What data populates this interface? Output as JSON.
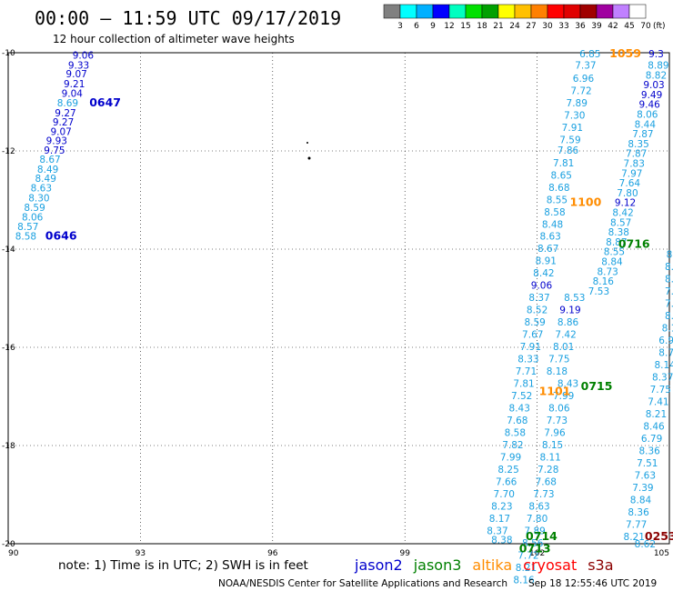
{
  "header": {
    "title": "00:00 – 11:59 UTC 09/17/2019",
    "subtitle": "12 hour collection of altimeter wave heights"
  },
  "colorbar": {
    "labels": [
      "3",
      "6",
      "9",
      "12",
      "15",
      "18",
      "21",
      "24",
      "27",
      "30",
      "33",
      "36",
      "39",
      "42",
      "45",
      "70"
    ],
    "unit": "(ft)",
    "colors": [
      "#808080",
      "#00ffff",
      "#00b0ff",
      "#0000ff",
      "#00ffc0",
      "#00e000",
      "#00a000",
      "#ffff00",
      "#ffc000",
      "#ff8000",
      "#ff0000",
      "#e00000",
      "#a00000",
      "#a000a0",
      "#c080ff",
      "#ffffff"
    ]
  },
  "footer": {
    "note": "note:  1) Time is in UTC; 2) SWH is in feet",
    "credit": "NOAA/NESDIS Center for Satellite Applications and Research",
    "timestamp": "Sep 18 12:55:46 UTC 2019",
    "satellites": [
      {
        "name": "jason2",
        "color": "#0000cc"
      },
      {
        "name": "jason3",
        "color": "#008000"
      },
      {
        "name": "altika",
        "color": "#ff8c00"
      },
      {
        "name": "cryosat",
        "color": "#ff0000"
      },
      {
        "name": "s3a",
        "color": "#8b0000"
      }
    ]
  },
  "chart_data": {
    "type": "scatter",
    "x_ticks": [
      "90",
      "93",
      "96",
      "99",
      "102",
      "105"
    ],
    "y_ticks": [
      "-10",
      "-12",
      "-14",
      "-16",
      "-18",
      "-20"
    ],
    "xlim": [
      90,
      105
    ],
    "ylim": [
      -20,
      -10
    ],
    "grid": true,
    "colors": {
      "light": "#1aa0e0",
      "dark": "#0000cc",
      "green": "#008000",
      "orange": "#ff8c00",
      "darkred": "#8b0000"
    },
    "labels": [
      {
        "x": 91.7,
        "y": -10.05,
        "text": "9.06",
        "c": "dark"
      },
      {
        "x": 91.6,
        "y": -10.25,
        "text": "9.33",
        "c": "dark"
      },
      {
        "x": 91.55,
        "y": -10.43,
        "text": "9.07",
        "c": "dark"
      },
      {
        "x": 91.5,
        "y": -10.63,
        "text": "9.21",
        "c": "dark"
      },
      {
        "x": 91.45,
        "y": -10.82,
        "text": "9.04",
        "c": "dark"
      },
      {
        "x": 91.35,
        "y": -11.02,
        "text": "8.69",
        "c": "light"
      },
      {
        "x": 91.3,
        "y": -11.22,
        "text": "9.27",
        "c": "dark"
      },
      {
        "x": 91.25,
        "y": -11.41,
        "text": "9.27",
        "c": "dark"
      },
      {
        "x": 91.2,
        "y": -11.6,
        "text": "9.07",
        "c": "dark"
      },
      {
        "x": 91.1,
        "y": -11.79,
        "text": "9.93",
        "c": "dark"
      },
      {
        "x": 91.05,
        "y": -11.98,
        "text": "9.75",
        "c": "dark"
      },
      {
        "x": 90.95,
        "y": -12.17,
        "text": "8.67",
        "c": "light"
      },
      {
        "x": 90.9,
        "y": -12.37,
        "text": "8.49",
        "c": "light"
      },
      {
        "x": 90.85,
        "y": -12.56,
        "text": "8.49",
        "c": "light"
      },
      {
        "x": 90.75,
        "y": -12.75,
        "text": "8.63",
        "c": "light"
      },
      {
        "x": 90.7,
        "y": -12.95,
        "text": "8.30",
        "c": "light"
      },
      {
        "x": 90.6,
        "y": -13.15,
        "text": "8.59",
        "c": "light"
      },
      {
        "x": 90.55,
        "y": -13.34,
        "text": "8.06",
        "c": "light"
      },
      {
        "x": 90.45,
        "y": -13.54,
        "text": "8.57",
        "c": "light"
      },
      {
        "x": 90.4,
        "y": -13.73,
        "text": "8.58",
        "c": "light"
      },
      {
        "x": 92.2,
        "y": -11.02,
        "text": "0647",
        "c": "dark",
        "big": true
      },
      {
        "x": 91.2,
        "y": -13.73,
        "text": "0646",
        "c": "dark",
        "big": true
      },
      {
        "x": 103.2,
        "y": -10.02,
        "text": "6.85",
        "c": "light"
      },
      {
        "x": 103.1,
        "y": -10.25,
        "text": "7.37",
        "c": "light"
      },
      {
        "x": 103.05,
        "y": -10.52,
        "text": "6.96",
        "c": "light"
      },
      {
        "x": 103.0,
        "y": -10.77,
        "text": "7.72",
        "c": "light"
      },
      {
        "x": 102.9,
        "y": -11.02,
        "text": "7.89",
        "c": "light"
      },
      {
        "x": 102.85,
        "y": -11.27,
        "text": "7.30",
        "c": "light"
      },
      {
        "x": 102.8,
        "y": -11.52,
        "text": "7.91",
        "c": "light"
      },
      {
        "x": 102.75,
        "y": -11.77,
        "text": "7.59",
        "c": "light"
      },
      {
        "x": 102.7,
        "y": -11.98,
        "text": "7.86",
        "c": "light"
      },
      {
        "x": 102.6,
        "y": -12.24,
        "text": "7.81",
        "c": "light"
      },
      {
        "x": 102.55,
        "y": -12.49,
        "text": "8.65",
        "c": "light"
      },
      {
        "x": 102.5,
        "y": -12.74,
        "text": "8.68",
        "c": "light"
      },
      {
        "x": 102.45,
        "y": -12.99,
        "text": "8.55",
        "c": "light"
      },
      {
        "x": 102.4,
        "y": -13.24,
        "text": "8.58",
        "c": "light"
      },
      {
        "x": 102.35,
        "y": -13.49,
        "text": "8.48",
        "c": "light"
      },
      {
        "x": 102.3,
        "y": -13.73,
        "text": "8.63",
        "c": "light"
      },
      {
        "x": 102.25,
        "y": -13.98,
        "text": "8.67",
        "c": "light"
      },
      {
        "x": 102.2,
        "y": -14.23,
        "text": "8.91",
        "c": "light"
      },
      {
        "x": 102.15,
        "y": -14.48,
        "text": "8.42",
        "c": "light"
      },
      {
        "x": 102.1,
        "y": -14.73,
        "text": "9.06",
        "c": "dark"
      },
      {
        "x": 102.05,
        "y": -14.98,
        "text": "8.37",
        "c": "light"
      },
      {
        "x": 102.0,
        "y": -15.23,
        "text": "8.52",
        "c": "light"
      },
      {
        "x": 101.95,
        "y": -15.48,
        "text": "8.59",
        "c": "light"
      },
      {
        "x": 101.9,
        "y": -15.73,
        "text": "7.67",
        "c": "light"
      },
      {
        "x": 101.85,
        "y": -15.98,
        "text": "7.91",
        "c": "light"
      },
      {
        "x": 101.8,
        "y": -16.23,
        "text": "8.33",
        "c": "light"
      },
      {
        "x": 101.75,
        "y": -16.48,
        "text": "7.71",
        "c": "light"
      },
      {
        "x": 101.7,
        "y": -16.73,
        "text": "7.81",
        "c": "light"
      },
      {
        "x": 101.65,
        "y": -16.98,
        "text": "7.52",
        "c": "light"
      },
      {
        "x": 101.6,
        "y": -17.23,
        "text": "8.43",
        "c": "light"
      },
      {
        "x": 101.55,
        "y": -17.48,
        "text": "7.68",
        "c": "light"
      },
      {
        "x": 101.5,
        "y": -17.73,
        "text": "8.58",
        "c": "light"
      },
      {
        "x": 101.45,
        "y": -17.98,
        "text": "7.82",
        "c": "light"
      },
      {
        "x": 101.4,
        "y": -18.23,
        "text": "7.99",
        "c": "light"
      },
      {
        "x": 101.35,
        "y": -18.48,
        "text": "8.25",
        "c": "light"
      },
      {
        "x": 101.3,
        "y": -18.73,
        "text": "7.66",
        "c": "light"
      },
      {
        "x": 101.25,
        "y": -18.98,
        "text": "7.70",
        "c": "light"
      },
      {
        "x": 101.2,
        "y": -19.23,
        "text": "8.23",
        "c": "light"
      },
      {
        "x": 101.15,
        "y": -19.48,
        "text": "8.17",
        "c": "light"
      },
      {
        "x": 101.1,
        "y": -19.73,
        "text": "8.37",
        "c": "light"
      },
      {
        "x": 101.2,
        "y": -19.92,
        "text": "8.38",
        "c": "light"
      },
      {
        "x": 102.85,
        "y": -14.98,
        "text": "8.53",
        "c": "light"
      },
      {
        "x": 102.75,
        "y": -15.23,
        "text": "9.19",
        "c": "dark"
      },
      {
        "x": 102.7,
        "y": -15.48,
        "text": "8.86",
        "c": "light"
      },
      {
        "x": 102.65,
        "y": -15.73,
        "text": "7.42",
        "c": "light"
      },
      {
        "x": 102.6,
        "y": -15.98,
        "text": "8.01",
        "c": "light"
      },
      {
        "x": 102.5,
        "y": -16.23,
        "text": "7.75",
        "c": "light"
      },
      {
        "x": 102.45,
        "y": -16.48,
        "text": "8.18",
        "c": "light"
      },
      {
        "x": 102.7,
        "y": -16.73,
        "text": "8.43",
        "c": "light"
      },
      {
        "x": 102.6,
        "y": -16.98,
        "text": "7.99",
        "c": "light"
      },
      {
        "x": 102.5,
        "y": -17.23,
        "text": "8.06",
        "c": "light"
      },
      {
        "x": 102.45,
        "y": -17.48,
        "text": "7.73",
        "c": "light"
      },
      {
        "x": 102.4,
        "y": -17.73,
        "text": "7.96",
        "c": "light"
      },
      {
        "x": 102.35,
        "y": -17.98,
        "text": "8.15",
        "c": "light"
      },
      {
        "x": 102.3,
        "y": -18.23,
        "text": "8.11",
        "c": "light"
      },
      {
        "x": 102.25,
        "y": -18.48,
        "text": "7.28",
        "c": "light"
      },
      {
        "x": 102.2,
        "y": -18.73,
        "text": "7.68",
        "c": "light"
      },
      {
        "x": 102.15,
        "y": -18.98,
        "text": "7.73",
        "c": "light"
      },
      {
        "x": 102.05,
        "y": -19.23,
        "text": "8.63",
        "c": "light"
      },
      {
        "x": 102.0,
        "y": -19.48,
        "text": "7.80",
        "c": "light"
      },
      {
        "x": 101.95,
        "y": -19.73,
        "text": "7.89",
        "c": "light"
      },
      {
        "x": 101.9,
        "y": -19.98,
        "text": "8.56",
        "c": "light"
      },
      {
        "x": 101.8,
        "y": -20.23,
        "text": "7.72",
        "c": "light"
      },
      {
        "x": 101.75,
        "y": -20.48,
        "text": "8.21",
        "c": "light"
      },
      {
        "x": 101.7,
        "y": -20.73,
        "text": "8.16",
        "c": "light"
      },
      {
        "x": 104.7,
        "y": -10.02,
        "text": "9.3",
        "c": "dark"
      },
      {
        "x": 104.75,
        "y": -10.25,
        "text": "8.89",
        "c": "light"
      },
      {
        "x": 104.7,
        "y": -10.45,
        "text": "8.82",
        "c": "light"
      },
      {
        "x": 104.65,
        "y": -10.65,
        "text": "9.03",
        "c": "dark"
      },
      {
        "x": 104.6,
        "y": -10.85,
        "text": "9.49",
        "c": "dark"
      },
      {
        "x": 104.55,
        "y": -11.05,
        "text": "9.46",
        "c": "dark"
      },
      {
        "x": 104.5,
        "y": -11.25,
        "text": "8.06",
        "c": "light"
      },
      {
        "x": 104.45,
        "y": -11.45,
        "text": "8.44",
        "c": "light"
      },
      {
        "x": 104.4,
        "y": -11.65,
        "text": "7.87",
        "c": "light"
      },
      {
        "x": 104.3,
        "y": -11.85,
        "text": "8.35",
        "c": "light"
      },
      {
        "x": 104.25,
        "y": -12.05,
        "text": "7.87",
        "c": "light"
      },
      {
        "x": 104.2,
        "y": -12.25,
        "text": "7.83",
        "c": "light"
      },
      {
        "x": 104.15,
        "y": -12.45,
        "text": "7.97",
        "c": "light"
      },
      {
        "x": 104.1,
        "y": -12.65,
        "text": "7.64",
        "c": "light"
      },
      {
        "x": 104.05,
        "y": -12.85,
        "text": "7.80",
        "c": "light"
      },
      {
        "x": 104.0,
        "y": -13.05,
        "text": "9.12",
        "c": "dark"
      },
      {
        "x": 103.95,
        "y": -13.25,
        "text": "8.42",
        "c": "light"
      },
      {
        "x": 103.9,
        "y": -13.45,
        "text": "8.57",
        "c": "light"
      },
      {
        "x": 103.85,
        "y": -13.65,
        "text": "8.38",
        "c": "light"
      },
      {
        "x": 103.8,
        "y": -13.85,
        "text": "8.87",
        "c": "light"
      },
      {
        "x": 103.75,
        "y": -14.05,
        "text": "8.55",
        "c": "light"
      },
      {
        "x": 103.7,
        "y": -14.25,
        "text": "8.84",
        "c": "light"
      },
      {
        "x": 103.6,
        "y": -14.45,
        "text": "8.73",
        "c": "light"
      },
      {
        "x": 103.5,
        "y": -14.65,
        "text": "8.16",
        "c": "light"
      },
      {
        "x": 103.4,
        "y": -14.85,
        "text": "7.53",
        "c": "light"
      },
      {
        "x": 105.0,
        "y": -14.1,
        "text": "8",
        "c": "light"
      },
      {
        "x": 105.0,
        "y": -14.35,
        "text": "8.",
        "c": "light"
      },
      {
        "x": 105.0,
        "y": -14.6,
        "text": "8.",
        "c": "light"
      },
      {
        "x": 105.0,
        "y": -14.85,
        "text": "7.",
        "c": "light"
      },
      {
        "x": 105.0,
        "y": -15.1,
        "text": "7.",
        "c": "light"
      },
      {
        "x": 105.0,
        "y": -15.35,
        "text": "8.",
        "c": "light"
      },
      {
        "x": 105.0,
        "y": -15.6,
        "text": "8.1",
        "c": "light"
      },
      {
        "x": 105.0,
        "y": -15.85,
        "text": "6.94",
        "c": "light"
      },
      {
        "x": 105.0,
        "y": -16.1,
        "text": "8.76",
        "c": "light"
      },
      {
        "x": 104.9,
        "y": -16.35,
        "text": "8.14",
        "c": "light"
      },
      {
        "x": 104.85,
        "y": -16.6,
        "text": "8.37",
        "c": "light"
      },
      {
        "x": 104.8,
        "y": -16.85,
        "text": "7.75",
        "c": "light"
      },
      {
        "x": 104.75,
        "y": -17.1,
        "text": "7.41",
        "c": "light"
      },
      {
        "x": 104.7,
        "y": -17.35,
        "text": "8.21",
        "c": "light"
      },
      {
        "x": 104.65,
        "y": -17.6,
        "text": "8.46",
        "c": "light"
      },
      {
        "x": 104.6,
        "y": -17.85,
        "text": "6.79",
        "c": "light"
      },
      {
        "x": 104.55,
        "y": -18.1,
        "text": "8.36",
        "c": "light"
      },
      {
        "x": 104.5,
        "y": -18.35,
        "text": "7.51",
        "c": "light"
      },
      {
        "x": 104.45,
        "y": -18.6,
        "text": "7.63",
        "c": "light"
      },
      {
        "x": 104.4,
        "y": -18.85,
        "text": "7.39",
        "c": "light"
      },
      {
        "x": 104.35,
        "y": -19.1,
        "text": "8.84",
        "c": "light"
      },
      {
        "x": 104.3,
        "y": -19.35,
        "text": "8.36",
        "c": "light"
      },
      {
        "x": 104.25,
        "y": -19.6,
        "text": "7.77",
        "c": "light"
      },
      {
        "x": 104.2,
        "y": -19.85,
        "text": "8.21",
        "c": "light"
      },
      {
        "x": 104.45,
        "y": -20.0,
        "text": "8.62",
        "c": "light"
      },
      {
        "x": 104.0,
        "y": -10.02,
        "text": "1059",
        "c": "orange",
        "big": true
      },
      {
        "x": 103.1,
        "y": -13.05,
        "text": "1100",
        "c": "orange",
        "big": true
      },
      {
        "x": 102.4,
        "y": -16.9,
        "text": "1101",
        "c": "orange",
        "big": true
      },
      {
        "x": 104.2,
        "y": -13.9,
        "text": "0716",
        "c": "green",
        "big": true
      },
      {
        "x": 103.35,
        "y": -16.8,
        "text": "0715",
        "c": "green",
        "big": true
      },
      {
        "x": 102.1,
        "y": -19.85,
        "text": "0714",
        "c": "green",
        "big": true
      },
      {
        "x": 101.95,
        "y": -20.1,
        "text": "0713",
        "c": "green",
        "big": true
      },
      {
        "x": 104.8,
        "y": -19.85,
        "text": "0253",
        "c": "darkred",
        "big": true
      }
    ]
  }
}
